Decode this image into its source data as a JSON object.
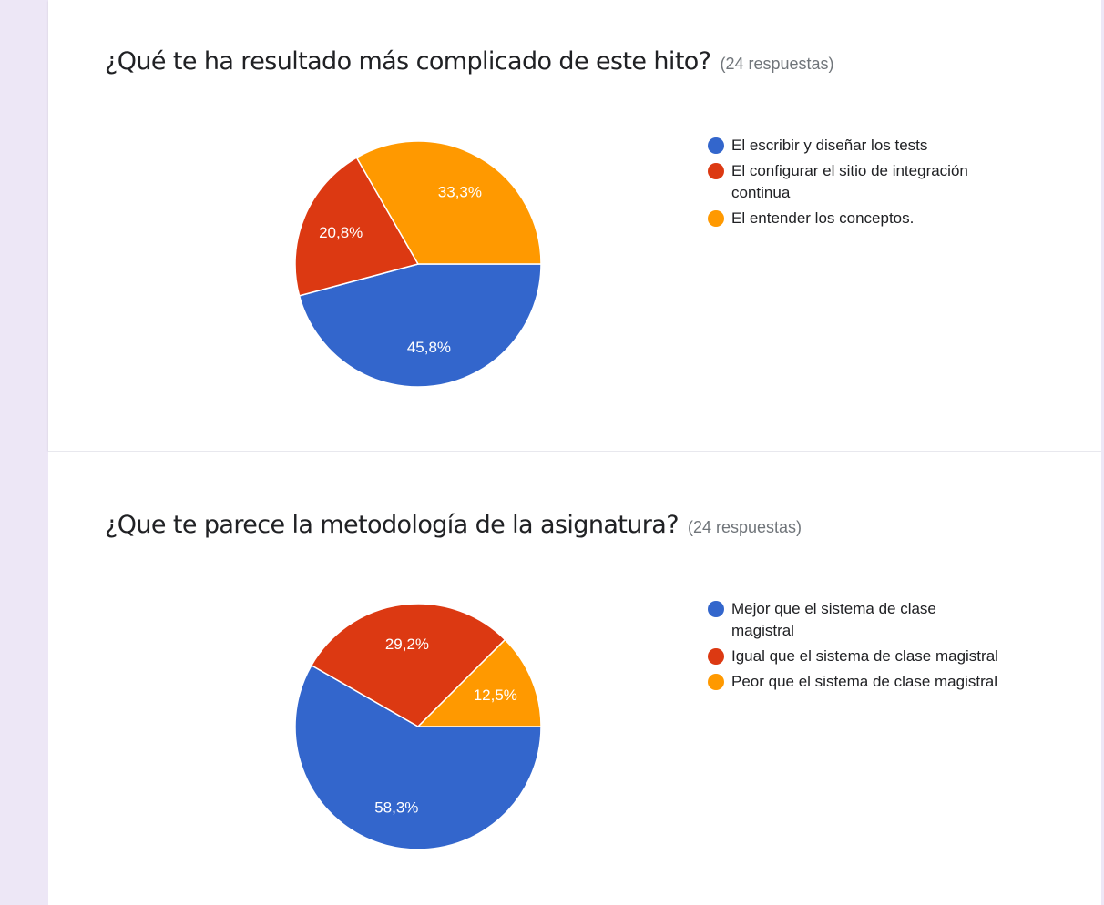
{
  "colors": {
    "blue": "#3366cc",
    "red": "#dc3912",
    "orange": "#ff9900"
  },
  "chart_data": [
    {
      "type": "pie",
      "title": "¿Qué te ha resultado más complicado de este hito?",
      "subtitle": "(24 respuestas)",
      "legend_position": "right",
      "slices": [
        {
          "label": "El escribir y diseñar los tests",
          "value": 45.8,
          "display": "45,8%",
          "color": "#3366cc"
        },
        {
          "label": "El configurar el sitio de integración continua",
          "value": 20.8,
          "display": "20,8%",
          "color": "#dc3912"
        },
        {
          "label": "El entender los conceptos.",
          "value": 33.3,
          "display": "33,3%",
          "color": "#ff9900"
        }
      ]
    },
    {
      "type": "pie",
      "title": "¿Que te parece la metodología de la asignatura?",
      "subtitle": "(24 respuestas)",
      "legend_position": "right",
      "slices": [
        {
          "label": "Mejor que el sistema de clase magistral",
          "value": 58.3,
          "display": "58,3%",
          "color": "#3366cc"
        },
        {
          "label": "Igual que el sistema de clase magistral",
          "value": 29.2,
          "display": "29,2%",
          "color": "#dc3912"
        },
        {
          "label": "Peor que el sistema de clase magistral",
          "value": 12.5,
          "display": "12,5%",
          "color": "#ff9900"
        }
      ]
    }
  ]
}
